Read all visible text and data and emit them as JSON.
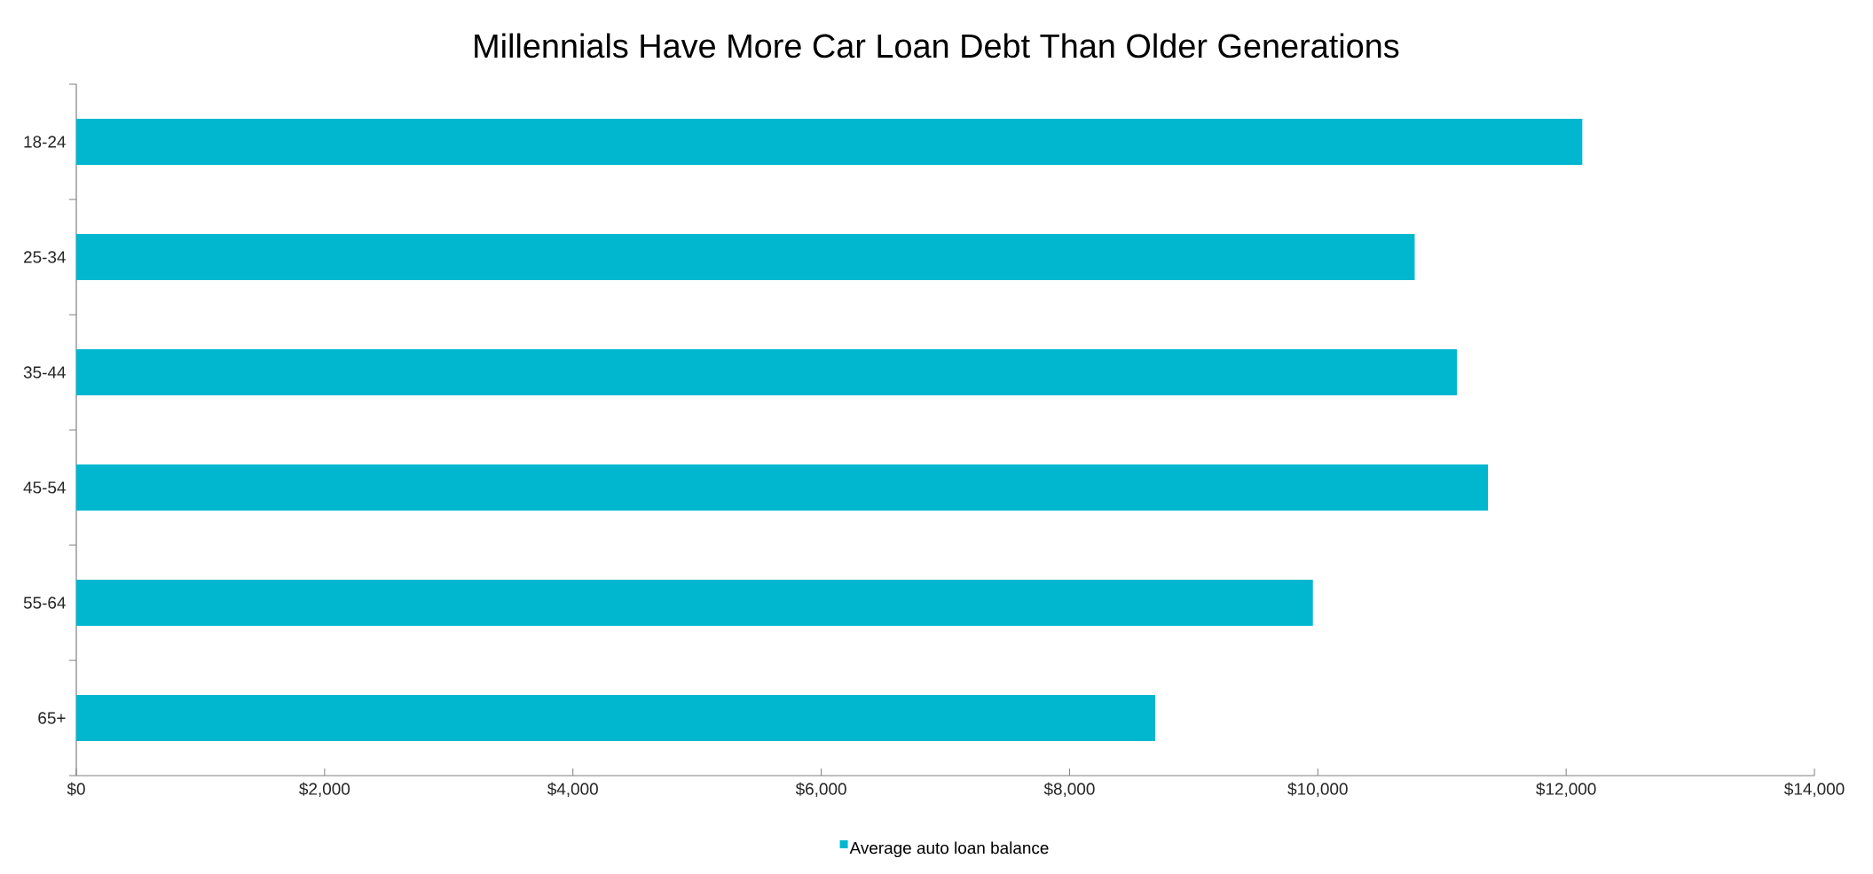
{
  "chart_data": {
    "type": "bar",
    "orientation": "horizontal",
    "title": "Millennials Have More Car Loan Debt Than Older Generations",
    "categories": [
      "18-24",
      "25-34",
      "35-44",
      "45-54",
      "55-64",
      "65+"
    ],
    "series": [
      {
        "name": "Average auto loan balance",
        "color": "#00b7cf",
        "values": [
          12130,
          10780,
          11120,
          11370,
          9960,
          8690
        ]
      }
    ],
    "xlim": [
      0,
      14000
    ],
    "xticks": [
      {
        "value": 0,
        "label": "$0"
      },
      {
        "value": 2000,
        "label": "$2,000"
      },
      {
        "value": 4000,
        "label": "$4,000"
      },
      {
        "value": 6000,
        "label": "$6,000"
      },
      {
        "value": 8000,
        "label": "$8,000"
      },
      {
        "value": 10000,
        "label": "$10,000"
      },
      {
        "value": 12000,
        "label": "$12,000"
      },
      {
        "value": 14000,
        "label": "$14,000"
      }
    ],
    "grid": false,
    "legend": "bottom"
  }
}
